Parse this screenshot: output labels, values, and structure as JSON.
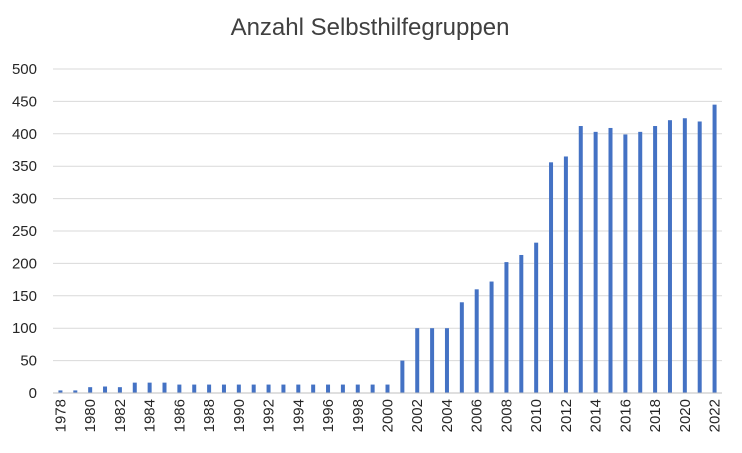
{
  "chart_data": {
    "type": "bar",
    "title": "Anzahl Selbsthilfegruppen",
    "xlabel": "",
    "ylabel": "",
    "ylim": [
      0,
      500
    ],
    "yticks": [
      0,
      50,
      100,
      150,
      200,
      250,
      300,
      350,
      400,
      450,
      500
    ],
    "grid": true,
    "legend": "none",
    "bar_color": "#4472c4",
    "categories": [
      "1978",
      "1979",
      "1980",
      "1981",
      "1982",
      "1983",
      "1984",
      "1985",
      "1986",
      "1987",
      "1988",
      "1989",
      "1990",
      "1991",
      "1992",
      "1993",
      "1994",
      "1995",
      "1996",
      "1997",
      "1998",
      "1999",
      "2000",
      "2001",
      "2002",
      "2003",
      "2004",
      "2005",
      "2006",
      "2007",
      "2008",
      "2009",
      "2010",
      "2011",
      "2012",
      "2013",
      "2014",
      "2015",
      "2016",
      "2017",
      "2018",
      "2019",
      "2020",
      "2021",
      "2022"
    ],
    "xtick_labels": [
      "1978",
      "1980",
      "1982",
      "1984",
      "1986",
      "1988",
      "1990",
      "1992",
      "1994",
      "1996",
      "1998",
      "2000",
      "2002",
      "2004",
      "2006",
      "2008",
      "2010",
      "2012",
      "2014",
      "2016",
      "2018",
      "2020",
      "2022"
    ],
    "values": [
      4,
      4,
      9,
      10,
      9,
      16,
      16,
      16,
      13,
      13,
      13,
      13,
      13,
      13,
      13,
      13,
      13,
      13,
      13,
      13,
      13,
      13,
      13,
      50,
      100,
      100,
      100,
      140,
      160,
      172,
      202,
      213,
      232,
      356,
      365,
      412,
      403,
      409,
      399,
      403,
      412,
      421,
      424,
      419,
      445
    ]
  }
}
